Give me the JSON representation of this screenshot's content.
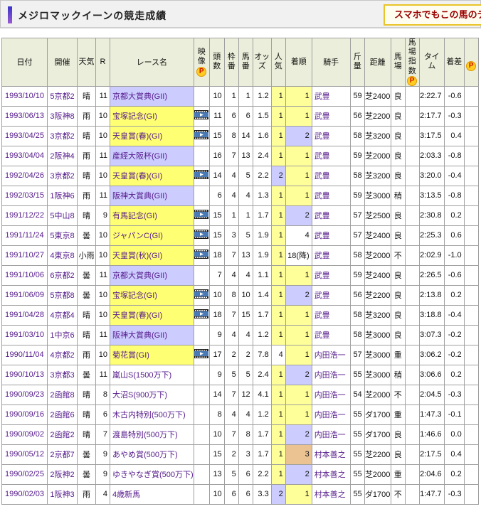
{
  "page_title": "メジロマックイーンの競走成績",
  "header_button_label": "スマホでもこの馬のデ",
  "colors": {
    "header_bg": "#ebeeda",
    "g1_race_bg": "#ffff73",
    "g2_race_bg": "#ccccff",
    "rank1_bg": "#ffff99",
    "rank2_bg": "#ccccff",
    "rank3_bg": "#ebc393",
    "link_text": "#551a8b",
    "button_border": "#e9c428",
    "button_text": "#990000",
    "accent_top": "#3a35c8",
    "accent_bottom": "#9a5ad2"
  },
  "icons": {
    "p_badge": "P",
    "video": "video-icon"
  },
  "table": {
    "columns": [
      {
        "key": "date",
        "label": "日付",
        "width": 64,
        "wrap": false
      },
      {
        "key": "venue",
        "label": "開催",
        "width": 42,
        "wrap": false
      },
      {
        "key": "weather",
        "label": "天気",
        "width": 26,
        "wrap": true
      },
      {
        "key": "r",
        "label": "R",
        "width": 20,
        "wrap": false
      },
      {
        "key": "race",
        "label": "レース名",
        "width": 116,
        "wrap": false
      },
      {
        "key": "video",
        "label": "映像",
        "width": 22,
        "wrap": true,
        "icon": "P"
      },
      {
        "key": "horses",
        "label": "頭数",
        "width": 21,
        "wrap": true
      },
      {
        "key": "bracket",
        "label": "枠番",
        "width": 20,
        "wrap": true
      },
      {
        "key": "number",
        "label": "馬番",
        "width": 20,
        "wrap": true
      },
      {
        "key": "odds",
        "label": "オッズ",
        "width": 26,
        "wrap": true
      },
      {
        "key": "pop",
        "label": "人気",
        "width": 20,
        "wrap": true
      },
      {
        "key": "finish",
        "label": "着順",
        "width": 37,
        "wrap": true
      },
      {
        "key": "jockey",
        "label": "騎手",
        "width": 54,
        "wrap": false
      },
      {
        "key": "weight",
        "label": "斤量",
        "width": 20,
        "wrap": true
      },
      {
        "key": "dist",
        "label": "距離",
        "width": 37,
        "wrap": false
      },
      {
        "key": "track",
        "label": "馬場",
        "width": 20,
        "wrap": true
      },
      {
        "key": "track_index",
        "label": "馬場指数",
        "width": 20,
        "wrap": true,
        "icon": "P"
      },
      {
        "key": "time",
        "label": "タイム",
        "width": 35,
        "wrap": true
      },
      {
        "key": "margin",
        "label": "着差",
        "width": 28,
        "wrap": true
      },
      {
        "key": "extra",
        "label": "",
        "width": 20,
        "wrap": false,
        "icon": "P"
      }
    ],
    "rows": [
      {
        "date": "1993/10/10",
        "venue": "5京都2",
        "weather": "晴",
        "r": "11",
        "race": "京都大賞典(GII)",
        "race_hl": "g2",
        "video": false,
        "horses": "10",
        "bracket": "1",
        "number": "1",
        "odds": "1.2",
        "pop": "1",
        "pop_hl": "y",
        "finish": "1",
        "finish_hl": "y",
        "jockey": "武豊",
        "weight": "59",
        "dist": "芝2400",
        "track": "良",
        "track_index": "",
        "time": "2:22.7",
        "margin": "-0.6"
      },
      {
        "date": "1993/06/13",
        "venue": "3阪神8",
        "weather": "雨",
        "r": "10",
        "race": "宝塚記念(GI)",
        "race_hl": "g1",
        "video": true,
        "horses": "11",
        "bracket": "6",
        "number": "6",
        "odds": "1.5",
        "pop": "1",
        "pop_hl": "y",
        "finish": "1",
        "finish_hl": "y",
        "jockey": "武豊",
        "weight": "56",
        "dist": "芝2200",
        "track": "良",
        "track_index": "",
        "time": "2:17.7",
        "margin": "-0.3"
      },
      {
        "date": "1993/04/25",
        "venue": "3京都2",
        "weather": "晴",
        "r": "10",
        "race": "天皇賞(春)(GI)",
        "race_hl": "g1",
        "video": true,
        "horses": "15",
        "bracket": "8",
        "number": "14",
        "odds": "1.6",
        "pop": "1",
        "pop_hl": "y",
        "finish": "2",
        "finish_hl": "b",
        "jockey": "武豊",
        "weight": "58",
        "dist": "芝3200",
        "track": "良",
        "track_index": "",
        "time": "3:17.5",
        "margin": "0.4"
      },
      {
        "date": "1993/04/04",
        "venue": "2阪神4",
        "weather": "雨",
        "r": "11",
        "race": "産經大阪杯(GII)",
        "race_hl": "g2",
        "video": false,
        "horses": "16",
        "bracket": "7",
        "number": "13",
        "odds": "2.4",
        "pop": "1",
        "pop_hl": "y",
        "finish": "1",
        "finish_hl": "y",
        "jockey": "武豊",
        "weight": "59",
        "dist": "芝2000",
        "track": "良",
        "track_index": "",
        "time": "2:03.3",
        "margin": "-0.8"
      },
      {
        "date": "1992/04/26",
        "venue": "3京都2",
        "weather": "晴",
        "r": "10",
        "race": "天皇賞(春)(GI)",
        "race_hl": "g1",
        "video": true,
        "horses": "14",
        "bracket": "4",
        "number": "5",
        "odds": "2.2",
        "pop": "2",
        "pop_hl": "b",
        "finish": "1",
        "finish_hl": "y",
        "jockey": "武豊",
        "weight": "58",
        "dist": "芝3200",
        "track": "良",
        "track_index": "",
        "time": "3:20.0",
        "margin": "-0.4"
      },
      {
        "date": "1992/03/15",
        "venue": "1阪神6",
        "weather": "雨",
        "r": "11",
        "race": "阪神大賞典(GII)",
        "race_hl": "g2",
        "video": false,
        "horses": "6",
        "bracket": "4",
        "number": "4",
        "odds": "1.3",
        "pop": "1",
        "pop_hl": "y",
        "finish": "1",
        "finish_hl": "y",
        "jockey": "武豊",
        "weight": "59",
        "dist": "芝3000",
        "track": "稍",
        "track_index": "",
        "time": "3:13.5",
        "margin": "-0.8"
      },
      {
        "date": "1991/12/22",
        "venue": "5中山8",
        "weather": "晴",
        "r": "9",
        "race": "有馬記念(GI)",
        "race_hl": "g1",
        "video": true,
        "horses": "15",
        "bracket": "1",
        "number": "1",
        "odds": "1.7",
        "pop": "1",
        "pop_hl": "y",
        "finish": "2",
        "finish_hl": "b",
        "jockey": "武豊",
        "weight": "57",
        "dist": "芝2500",
        "track": "良",
        "track_index": "",
        "time": "2:30.8",
        "margin": "0.2"
      },
      {
        "date": "1991/11/24",
        "venue": "5東京8",
        "weather": "曇",
        "r": "10",
        "race": "ジャパンC(GI)",
        "race_hl": "g1",
        "video": true,
        "horses": "15",
        "bracket": "3",
        "number": "5",
        "odds": "1.9",
        "pop": "1",
        "pop_hl": "y",
        "finish": "4",
        "finish_hl": "",
        "jockey": "武豊",
        "weight": "57",
        "dist": "芝2400",
        "track": "良",
        "track_index": "",
        "time": "2:25.3",
        "margin": "0.6"
      },
      {
        "date": "1991/10/27",
        "venue": "4東京8",
        "weather": "小雨",
        "r": "10",
        "race": "天皇賞(秋)(GI)",
        "race_hl": "g1",
        "video": true,
        "horses": "18",
        "bracket": "7",
        "number": "13",
        "odds": "1.9",
        "pop": "1",
        "pop_hl": "y",
        "finish": "18(降)",
        "finish_hl": "",
        "jockey": "武豊",
        "weight": "58",
        "dist": "芝2000",
        "track": "不",
        "track_index": "",
        "time": "2:02.9",
        "margin": "-1.0"
      },
      {
        "date": "1991/10/06",
        "venue": "6京都2",
        "weather": "曇",
        "r": "11",
        "race": "京都大賞典(GII)",
        "race_hl": "g2",
        "video": false,
        "horses": "7",
        "bracket": "4",
        "number": "4",
        "odds": "1.1",
        "pop": "1",
        "pop_hl": "y",
        "finish": "1",
        "finish_hl": "y",
        "jockey": "武豊",
        "weight": "59",
        "dist": "芝2400",
        "track": "良",
        "track_index": "",
        "time": "2:26.5",
        "margin": "-0.6"
      },
      {
        "date": "1991/06/09",
        "venue": "5京都8",
        "weather": "曇",
        "r": "10",
        "race": "宝塚記念(GI)",
        "race_hl": "g1",
        "video": true,
        "horses": "10",
        "bracket": "8",
        "number": "10",
        "odds": "1.4",
        "pop": "1",
        "pop_hl": "y",
        "finish": "2",
        "finish_hl": "b",
        "jockey": "武豊",
        "weight": "56",
        "dist": "芝2200",
        "track": "良",
        "track_index": "",
        "time": "2:13.8",
        "margin": "0.2"
      },
      {
        "date": "1991/04/28",
        "venue": "4京都4",
        "weather": "晴",
        "r": "10",
        "race": "天皇賞(春)(GI)",
        "race_hl": "g1",
        "video": true,
        "horses": "18",
        "bracket": "7",
        "number": "15",
        "odds": "1.7",
        "pop": "1",
        "pop_hl": "y",
        "finish": "1",
        "finish_hl": "y",
        "jockey": "武豊",
        "weight": "58",
        "dist": "芝3200",
        "track": "良",
        "track_index": "",
        "time": "3:18.8",
        "margin": "-0.4"
      },
      {
        "date": "1991/03/10",
        "venue": "1中京6",
        "weather": "晴",
        "r": "11",
        "race": "阪神大賞典(GII)",
        "race_hl": "g2",
        "video": false,
        "horses": "9",
        "bracket": "4",
        "number": "4",
        "odds": "1.2",
        "pop": "1",
        "pop_hl": "y",
        "finish": "1",
        "finish_hl": "y",
        "jockey": "武豊",
        "weight": "58",
        "dist": "芝3000",
        "track": "良",
        "track_index": "",
        "time": "3:07.3",
        "margin": "-0.2"
      },
      {
        "date": "1990/11/04",
        "venue": "4京都2",
        "weather": "雨",
        "r": "10",
        "race": "菊花賞(GI)",
        "race_hl": "g1",
        "video": true,
        "horses": "17",
        "bracket": "2",
        "number": "2",
        "odds": "7.8",
        "pop": "4",
        "pop_hl": "",
        "finish": "1",
        "finish_hl": "y",
        "jockey": "内田浩一",
        "weight": "57",
        "dist": "芝3000",
        "track": "重",
        "track_index": "",
        "time": "3:06.2",
        "margin": "-0.2"
      },
      {
        "date": "1990/10/13",
        "venue": "3京都3",
        "weather": "曇",
        "r": "11",
        "race": "嵐山S(1500万下)",
        "race_hl": "",
        "video": false,
        "horses": "9",
        "bracket": "5",
        "number": "5",
        "odds": "2.4",
        "pop": "1",
        "pop_hl": "y",
        "finish": "2",
        "finish_hl": "b",
        "jockey": "内田浩一",
        "weight": "55",
        "dist": "芝3000",
        "track": "稍",
        "track_index": "",
        "time": "3:06.6",
        "margin": "0.2"
      },
      {
        "date": "1990/09/23",
        "venue": "2函館8",
        "weather": "晴",
        "r": "8",
        "race": "大沼S(900万下)",
        "race_hl": "",
        "video": false,
        "horses": "14",
        "bracket": "7",
        "number": "12",
        "odds": "4.1",
        "pop": "1",
        "pop_hl": "y",
        "finish": "1",
        "finish_hl": "y",
        "jockey": "内田浩一",
        "weight": "54",
        "dist": "芝2000",
        "track": "不",
        "track_index": "",
        "time": "2:04.5",
        "margin": "-0.3"
      },
      {
        "date": "1990/09/16",
        "venue": "2函館6",
        "weather": "晴",
        "r": "6",
        "race": "木古内特別(500万下)",
        "race_hl": "",
        "video": false,
        "horses": "8",
        "bracket": "4",
        "number": "4",
        "odds": "1.2",
        "pop": "1",
        "pop_hl": "y",
        "finish": "1",
        "finish_hl": "y",
        "jockey": "内田浩一",
        "weight": "55",
        "dist": "ダ1700",
        "track": "重",
        "track_index": "",
        "time": "1:47.3",
        "margin": "-0.1"
      },
      {
        "date": "1990/09/02",
        "venue": "2函館2",
        "weather": "晴",
        "r": "7",
        "race": "渡島特別(500万下)",
        "race_hl": "",
        "video": false,
        "horses": "10",
        "bracket": "7",
        "number": "8",
        "odds": "1.7",
        "pop": "1",
        "pop_hl": "y",
        "finish": "2",
        "finish_hl": "b",
        "jockey": "内田浩一",
        "weight": "55",
        "dist": "ダ1700",
        "track": "良",
        "track_index": "",
        "time": "1:46.6",
        "margin": "0.0"
      },
      {
        "date": "1990/05/12",
        "venue": "2京都7",
        "weather": "曇",
        "r": "9",
        "race": "あやめ賞(500万下)",
        "race_hl": "",
        "video": false,
        "horses": "15",
        "bracket": "2",
        "number": "3",
        "odds": "1.7",
        "pop": "1",
        "pop_hl": "y",
        "finish": "3",
        "finish_hl": "t",
        "jockey": "村本善之",
        "weight": "55",
        "dist": "芝2200",
        "track": "良",
        "track_index": "",
        "time": "2:17.5",
        "margin": "0.4"
      },
      {
        "date": "1990/02/25",
        "venue": "2阪神2",
        "weather": "曇",
        "r": "9",
        "race": "ゆきやなぎ賞(500万下)",
        "race_hl": "",
        "video": false,
        "horses": "13",
        "bracket": "5",
        "number": "6",
        "odds": "2.2",
        "pop": "1",
        "pop_hl": "y",
        "finish": "2",
        "finish_hl": "b",
        "jockey": "村本善之",
        "weight": "55",
        "dist": "芝2000",
        "track": "重",
        "track_index": "",
        "time": "2:04.6",
        "margin": "0.2"
      },
      {
        "date": "1990/02/03",
        "venue": "1阪神3",
        "weather": "雨",
        "r": "4",
        "race": "4歳新馬",
        "race_hl": "",
        "video": false,
        "horses": "10",
        "bracket": "6",
        "number": "6",
        "odds": "3.3",
        "pop": "2",
        "pop_hl": "b",
        "finish": "1",
        "finish_hl": "y",
        "jockey": "村本善之",
        "weight": "55",
        "dist": "ダ1700",
        "track": "不",
        "track_index": "",
        "time": "1:47.7",
        "margin": "-0.3"
      }
    ]
  }
}
